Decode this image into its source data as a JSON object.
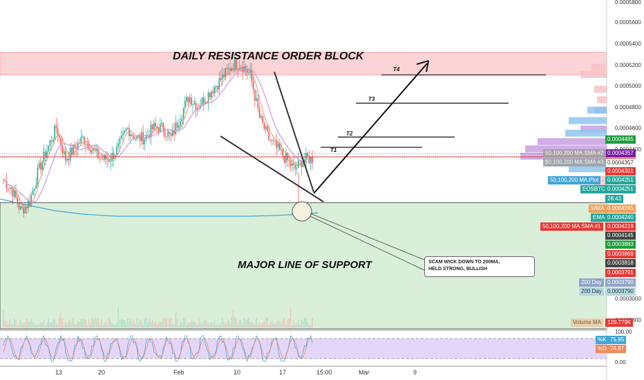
{
  "annotations": {
    "resistance": "DAILY RESISTANCE ORDER BLOCK",
    "support": "MAJOR LINE OF SUPPORT",
    "targets": [
      "T1",
      "T2",
      "T3",
      "T4"
    ],
    "note_line1": "SCAM WICK DOWN TO 200MA,",
    "note_line2": "HELD STRONG, BULLISH"
  },
  "price_axis": {
    "ticks": [
      "0.0005800",
      "0.0005600",
      "0.0005400",
      "0.0005200",
      "0.0005000",
      "0.0004800",
      "0.0004600",
      "0.0004400",
      "0.0003000",
      "0.0002800"
    ],
    "badges": [
      {
        "text": "0.0004485",
        "color": "#1e9e3b"
      },
      {
        "text": "0.0004357",
        "color": "#7b1fa2"
      },
      {
        "text": "0.0004357",
        "color": "#ffffff"
      },
      {
        "text": "0.0004301",
        "color": "#e53935"
      },
      {
        "text": "0.0004251",
        "color": "#26a69a"
      },
      {
        "text": "0.0004251",
        "color": "#26a69a"
      },
      {
        "text": "28:43",
        "color": "#26a69a"
      },
      {
        "text": "0.0004245",
        "color": "#f0a05a"
      },
      {
        "text": "0.0004240",
        "color": "#26a69a"
      },
      {
        "text": "0.0004219",
        "color": "#e53935"
      },
      {
        "text": "0.0004145",
        "color": "#444444"
      },
      {
        "text": "0.0003883",
        "color": "#1e9e3b"
      },
      {
        "text": "0.0003869",
        "color": "#e53935"
      },
      {
        "text": "0.0003818",
        "color": "#444444"
      },
      {
        "text": "0.0003791",
        "color": "#e53935"
      },
      {
        "text": "0.0003790",
        "color": "#90a4c8"
      },
      {
        "text": "0.0003790",
        "color": "#b3d9e0"
      },
      {
        "text": "129.779K",
        "color": "#e53935"
      }
    ],
    "left_badges": [
      {
        "text": "50,100,200 MA:SMA #2",
        "color": "#9e9e9e"
      },
      {
        "text": "50,100,200 MA:SMA #3",
        "color": "#9e9e9e"
      },
      {
        "text": "50,100,200 MA:Plot",
        "color": "#42a5d8"
      },
      {
        "text": "EOSBTC",
        "color": "#26a69a"
      },
      {
        "text": "WMA",
        "color": "#f0a05a"
      },
      {
        "text": "EMA",
        "color": "#26a69a"
      },
      {
        "text": "50,100,200 MA:SMA #1",
        "color": "#e53935"
      },
      {
        "text": "200 Day",
        "color": "#90a4c8"
      },
      {
        "text": "200 Day",
        "color": "#b3d9e0"
      },
      {
        "text": "Volume MA",
        "color": "#e8d0b0"
      }
    ]
  },
  "rsi_axis": {
    "ticks": [
      "100.00",
      "0.00"
    ],
    "k_label": "%K",
    "k_value": "75.95",
    "d_label": "%D",
    "d_value": "74.87"
  },
  "time_axis": {
    "labels": [
      "13",
      "20",
      "Feb",
      "10",
      "17",
      "15:00",
      "Mar",
      "9"
    ]
  },
  "colors": {
    "resistance_zone": "#fbd4d8",
    "support_zone": "#d9efd9",
    "rsi_zone": "#e4d6f9",
    "up_candle": "#26a69a",
    "down_candle": "#ef5350",
    "ma_200": "#42a5d8",
    "wma": "#f08a5a",
    "sma": "#c8a0e0"
  },
  "chart_data": {
    "type": "candlestick",
    "symbol": "EOSBTC",
    "ylim": [
      0.00027,
      0.00059
    ],
    "x": [
      "13",
      "20",
      "Feb",
      "10",
      "17",
      "Mar",
      "9"
    ],
    "price_path": [
      0.00041,
      0.0004,
      0.00038,
      0.00039,
      0.00042,
      0.00044,
      0.00046,
      0.00043,
      0.00044,
      0.00045,
      0.00044,
      0.00043,
      0.00043,
      0.00044,
      0.00046,
      0.00045,
      0.00045,
      0.00046,
      0.00046,
      0.00045,
      0.00047,
      0.00049,
      0.00048,
      0.00049,
      0.0005,
      0.00051,
      0.00052,
      0.00052,
      0.00051,
      0.00047,
      0.00045,
      0.00044,
      0.00043,
      0.00042,
      0.00043,
      0.00043
    ],
    "levels": {
      "resistance_zone": [
        0.0005105,
        0.000532
      ],
      "current_price": 0.0004251,
      "red_line": 0.0004301,
      "support_top": 0.0003883
    },
    "targets": {
      "T1": 0.0004399,
      "T2": 0.0004523,
      "T3": 0.000484,
      "T4": 0.000511
    },
    "series_ma200_flat": 0.000379
  }
}
